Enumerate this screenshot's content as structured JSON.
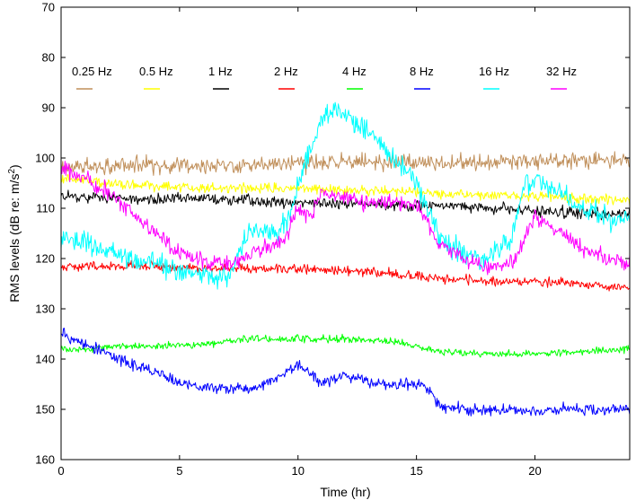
{
  "chart_data": {
    "type": "line",
    "title": "",
    "xlabel": "Time (hr)",
    "ylabel": {
      "main": "RMS levels (dB re: m/s",
      "sup": "2",
      "tail": ")"
    },
    "xlim": [
      0,
      24
    ],
    "ylim": [
      70,
      160
    ],
    "y_inverted": true,
    "xticks": [
      0,
      5,
      10,
      15,
      20
    ],
    "yticks": [
      70,
      80,
      90,
      100,
      110,
      120,
      130,
      140,
      150,
      160
    ],
    "grid": false,
    "legend_position": "top",
    "series": [
      {
        "name": "0.25 Hz",
        "color": "#c08f5a",
        "x": [
          0,
          2,
          4,
          6,
          8,
          10,
          12,
          14,
          16,
          18,
          20,
          22,
          24
        ],
        "y": [
          102,
          101.5,
          101.5,
          101.5,
          101.5,
          101,
          101,
          101,
          101,
          101,
          100.5,
          100.5,
          100.5
        ],
        "noise": 1.6
      },
      {
        "name": "0.5 Hz",
        "color": "#ffff00",
        "x": [
          0,
          1,
          2,
          4,
          6,
          8,
          10,
          12,
          14,
          16,
          18,
          20,
          22,
          24
        ],
        "y": [
          104,
          104.5,
          105,
          105.5,
          106,
          106,
          106,
          106.5,
          106.5,
          107,
          107.5,
          107.5,
          108,
          108.5
        ],
        "noise": 1.0
      },
      {
        "name": "1 Hz",
        "color": "#000000",
        "x": [
          0,
          2,
          4,
          6,
          8,
          10,
          12,
          14,
          16,
          18,
          20,
          22,
          24
        ],
        "y": [
          107.5,
          108,
          108,
          108,
          108.5,
          109,
          109,
          109.5,
          109.5,
          110,
          110.5,
          111,
          111
        ],
        "noise": 1.1
      },
      {
        "name": "2 Hz",
        "color": "#ff0000",
        "x": [
          0,
          2,
          4,
          6,
          8,
          10,
          12,
          14,
          16,
          18,
          20,
          22,
          24
        ],
        "y": [
          121.5,
          121.5,
          121.5,
          122,
          122,
          122,
          122.5,
          123,
          124,
          124.5,
          124.5,
          125,
          126
        ],
        "noise": 0.9
      },
      {
        "name": "4 Hz",
        "color": "#00ff00",
        "x": [
          0,
          1,
          2,
          4,
          6,
          8,
          10,
          12,
          14,
          16,
          18,
          20,
          22,
          24
        ],
        "y": [
          138,
          138,
          137.5,
          137.5,
          137,
          136,
          136,
          136,
          136.5,
          138.5,
          139,
          139,
          138.5,
          138
        ],
        "noise": 0.7
      },
      {
        "name": "8 Hz",
        "color": "#0000ff",
        "x": [
          0,
          0.5,
          1,
          2,
          3,
          4,
          5,
          6,
          7,
          8,
          9,
          10,
          10.5,
          11,
          12,
          13,
          14,
          15,
          15.5,
          16,
          17,
          18,
          19,
          20,
          21,
          22,
          23,
          24
        ],
        "y": [
          135,
          136,
          137,
          139,
          141,
          142.5,
          145,
          145.5,
          146,
          146,
          144,
          141,
          143,
          145,
          143,
          145,
          145,
          145,
          146,
          149.5,
          150,
          150,
          150,
          150.5,
          150,
          150,
          150,
          150
        ],
        "noise": 1.1
      },
      {
        "name": "16 Hz",
        "color": "#00ffff",
        "x": [
          0,
          1,
          2,
          3,
          4,
          5,
          6,
          7,
          7.5,
          8,
          9,
          9.5,
          10,
          10.5,
          11,
          11.5,
          12,
          13,
          14,
          15,
          15.5,
          16,
          17,
          18,
          19,
          19.5,
          20,
          21,
          22,
          23,
          24
        ],
        "y": [
          116,
          117,
          118.5,
          120,
          121,
          122.5,
          123.5,
          124,
          119,
          114,
          114.5,
          113.5,
          105,
          98,
          92,
          90.5,
          91,
          95,
          100,
          105,
          110,
          116,
          119,
          120,
          116,
          106,
          104,
          107,
          110,
          112,
          113
        ],
        "noise": 2.2
      },
      {
        "name": "32 Hz",
        "color": "#ff00ff",
        "x": [
          0,
          0.5,
          1,
          2,
          3,
          4,
          5,
          6,
          7,
          8,
          9,
          9.5,
          10,
          10.5,
          11,
          12,
          13,
          14,
          15,
          15.5,
          16,
          17,
          18,
          19,
          20,
          21,
          22,
          23,
          24
        ],
        "y": [
          102,
          103,
          104,
          107,
          111,
          115,
          119,
          120.5,
          121,
          119.5,
          117,
          116,
          110,
          112,
          107,
          108,
          108.5,
          109,
          109.5,
          113,
          117,
          120,
          122,
          121,
          112,
          114,
          118,
          120,
          121
        ],
        "noise": 1.6
      }
    ]
  }
}
